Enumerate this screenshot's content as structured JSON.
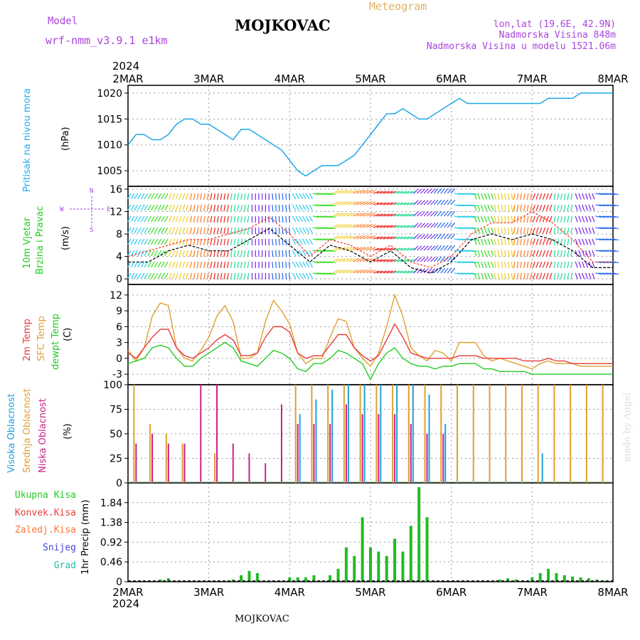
{
  "header": {
    "title": "MOJKOVAC",
    "model_label": "Model",
    "model_name": "wrf-nmm_v3.9.1  e1km",
    "meteogram": "Meteogram",
    "lonlat": "lon,lat (19.6E, 42.9N)",
    "altitude": "Nadmorska Visina 848m",
    "model_altitude": "Nadmorska Visina u modelu 1521.06m",
    "year_top": "2024",
    "year_bottom": "2024",
    "footer": "MOJKOVAC",
    "credit": "made by Angel"
  },
  "colors": {
    "pressure": "#1ea8e6",
    "temp2m": "#e83c3c",
    "sfc": "#e0a030",
    "dew": "#22cc22",
    "high_cloud": "#1fa0dc",
    "mid_cloud": "#e0a030",
    "low_cloud": "#cc1f8a",
    "wind_speed": "#000000",
    "gust": "#ff3322",
    "grid": "#999999",
    "label_blue": "#22aaee",
    "label_green": "#22cc22",
    "label_purple": "#aa44dd"
  },
  "chart_data": [
    {
      "type": "line",
      "name": "pressure",
      "x_ticks": [
        "2MAR",
        "3MAR",
        "4MAR",
        "5MAR",
        "6MAR",
        "7MAR",
        "8MAR"
      ],
      "ylabel_outer": "Pritisak na nivou mora",
      "unit": "(hPa)",
      "ylim": [
        1002,
        1021.5
      ],
      "y_ticks": [
        1005,
        1010,
        1015,
        1020
      ],
      "grid": true,
      "x": [
        0,
        0.1,
        0.2,
        0.3,
        0.4,
        0.5,
        0.6,
        0.7,
        0.8,
        0.9,
        1.0,
        1.1,
        1.2,
        1.3,
        1.4,
        1.5,
        1.6,
        1.7,
        1.8,
        1.9,
        2.0,
        2.1,
        2.2,
        2.3,
        2.4,
        2.5,
        2.6,
        2.7,
        2.8,
        2.9,
        3.0,
        3.1,
        3.2,
        3.3,
        3.4,
        3.5,
        3.6,
        3.7,
        3.8,
        3.9,
        4.0,
        4.1,
        4.2,
        4.3,
        4.4,
        4.5,
        4.6,
        4.7,
        4.8,
        4.9,
        5.0,
        5.1,
        5.2,
        5.3,
        5.4,
        5.5,
        5.6,
        5.7,
        5.8,
        5.9,
        6.0
      ],
      "values": [
        1010,
        1012,
        1012,
        1011,
        1011,
        1012,
        1014,
        1015,
        1015,
        1014,
        1014,
        1013,
        1012,
        1011,
        1013,
        1013,
        1012,
        1011,
        1010,
        1009,
        1007,
        1005,
        1004,
        1005,
        1006,
        1006,
        1006,
        1007,
        1008,
        1010,
        1012,
        1014,
        1016,
        1016,
        1017,
        1016,
        1015,
        1015,
        1016,
        1017,
        1018,
        1019,
        1018,
        1018,
        1018,
        1018,
        1018,
        1018,
        1018,
        1018,
        1018,
        1018,
        1019,
        1019,
        1019,
        1019,
        1020,
        1020,
        1020,
        1020,
        1020
      ]
    },
    {
      "type": "line",
      "name": "wind",
      "x_ticks": [
        "2MAR",
        "3MAR",
        "4MAR",
        "5MAR",
        "6MAR",
        "7MAR",
        "8MAR"
      ],
      "ylabel_outer": [
        "10m Vjetar",
        "Brzina i Pravac"
      ],
      "unit": "(m/s)",
      "compass": [
        "N",
        "W",
        "E",
        "S"
      ],
      "ylim": [
        -1,
        16.5
      ],
      "y_ticks": [
        0,
        4,
        8,
        12,
        16
      ],
      "grid": true,
      "x": [
        0,
        0.25,
        0.5,
        0.75,
        1.0,
        1.25,
        1.5,
        1.75,
        2.0,
        2.25,
        2.5,
        2.75,
        3.0,
        3.25,
        3.5,
        3.75,
        4.0,
        4.25,
        4.5,
        4.75,
        5.0,
        5.25,
        5.5,
        5.75,
        6.0
      ],
      "values": [
        3,
        3,
        5,
        6,
        5,
        5,
        7,
        9,
        6,
        3,
        6,
        5,
        3,
        5,
        2,
        1,
        3,
        7,
        8,
        7,
        8,
        7,
        5,
        2,
        2
      ],
      "gust_values": [
        4,
        5,
        6,
        7,
        7,
        8,
        9,
        11,
        8,
        4,
        7,
        6,
        4,
        6,
        3,
        2,
        4,
        8,
        10,
        10,
        12,
        10,
        7,
        3,
        3
      ],
      "direction_deg": [
        210,
        210,
        200,
        190,
        190,
        190,
        180,
        175,
        150,
        100,
        60,
        60,
        70,
        70,
        45,
        40,
        100,
        160,
        170,
        190,
        200,
        190,
        160,
        100,
        90
      ]
    },
    {
      "type": "line",
      "name": "temperature",
      "x_ticks": [
        "2MAR",
        "3MAR",
        "4MAR",
        "5MAR",
        "6MAR",
        "7MAR",
        "8MAR"
      ],
      "labels": [
        "2m Temp",
        "SFC Temp",
        "dewpt Temp"
      ],
      "unit": "(C)",
      "ylim": [
        -5,
        14
      ],
      "y_ticks": [
        -3,
        0,
        3,
        6,
        9,
        12
      ],
      "grid": true,
      "x": [
        0,
        0.1,
        0.2,
        0.3,
        0.4,
        0.5,
        0.6,
        0.7,
        0.8,
        0.9,
        1.0,
        1.1,
        1.2,
        1.3,
        1.4,
        1.5,
        1.6,
        1.7,
        1.8,
        1.9,
        2.0,
        2.1,
        2.2,
        2.3,
        2.4,
        2.5,
        2.6,
        2.7,
        2.8,
        2.9,
        3.0,
        3.1,
        3.2,
        3.3,
        3.4,
        3.5,
        3.6,
        3.7,
        3.8,
        3.9,
        4.0,
        4.1,
        4.2,
        4.3,
        4.4,
        4.5,
        4.6,
        4.7,
        4.8,
        4.9,
        5.0,
        5.1,
        5.2,
        5.3,
        5.4,
        5.5,
        5.6,
        5.7,
        5.8,
        5.9,
        6.0
      ],
      "series": [
        {
          "name": "2m Temp",
          "values": [
            1,
            0,
            2,
            4,
            5.5,
            5.5,
            2,
            0.5,
            0,
            1,
            2,
            3.5,
            4.5,
            3.5,
            0.5,
            0.5,
            1,
            4,
            6,
            6,
            5,
            1,
            0,
            0.5,
            0.5,
            2.5,
            4.5,
            4.5,
            2,
            0.5,
            -0.5,
            0.5,
            3.5,
            6.5,
            4,
            1,
            0.5,
            0,
            0,
            0,
            0,
            0.5,
            0.5,
            0.5,
            0,
            0,
            0,
            0,
            0,
            -0.5,
            -0.5,
            -0.5,
            0,
            -0.5,
            -0.5,
            -1,
            -1,
            -1,
            -1,
            -1,
            -1
          ]
        },
        {
          "name": "SFC Temp",
          "values": [
            1.5,
            -0.5,
            2,
            8,
            10.5,
            10,
            2,
            0,
            -0.5,
            1.5,
            4,
            8,
            10,
            7,
            0,
            0,
            1,
            7,
            11,
            9,
            6.5,
            1,
            -1,
            0,
            0,
            4,
            7.5,
            7,
            2,
            0,
            -1.5,
            1,
            6,
            12,
            8,
            2,
            0.5,
            -0.5,
            1.5,
            1,
            -0.5,
            3,
            3,
            3,
            0.5,
            -0.5,
            0,
            -0.5,
            -1,
            -1.5,
            -2,
            -1,
            -0.5,
            -1,
            -1,
            -1,
            -1.5,
            -1.5,
            -1.5,
            -1.5,
            -1.5
          ]
        },
        {
          "name": "dewpt Temp",
          "values": [
            -1,
            -0.5,
            0,
            2,
            2.5,
            2,
            0,
            -1.5,
            -1.5,
            0,
            1,
            2,
            3,
            2,
            -0.5,
            -1,
            -1.5,
            0,
            1.5,
            1,
            0,
            -2,
            -2.5,
            -1,
            -1,
            0,
            1.5,
            1,
            0,
            -1,
            -4,
            -1,
            1,
            2,
            0,
            -1,
            -1.5,
            -1.5,
            -2,
            -1.5,
            -1.5,
            -1,
            -1,
            -1,
            -2,
            -2,
            -2.5,
            -2.5,
            -2.5,
            -2.5,
            -3,
            -3,
            -3,
            -3,
            -3,
            -3,
            -3,
            -3,
            -3,
            -3,
            -3
          ]
        }
      ]
    },
    {
      "type": "bar",
      "name": "clouds",
      "x_ticks": [
        "2MAR",
        "3MAR",
        "4MAR",
        "5MAR",
        "6MAR",
        "7MAR",
        "8MAR"
      ],
      "labels": [
        "Visoka Oblacnost",
        "Srednja Oblacnost",
        "Niska Oblacnost"
      ],
      "unit": "(%)",
      "ylim": [
        0,
        100
      ],
      "y_ticks": [
        0,
        25,
        50,
        75,
        100
      ],
      "grid": true,
      "x": [
        0.1,
        0.3,
        0.5,
        0.7,
        0.9,
        1.1,
        1.3,
        1.5,
        1.7,
        1.9,
        2.1,
        2.3,
        2.5,
        2.7,
        2.9,
        3.1,
        3.3,
        3.5,
        3.7,
        3.9,
        4.1,
        4.3,
        4.5,
        4.7,
        4.9,
        5.1,
        5.3,
        5.5,
        5.7,
        5.9
      ],
      "series": [
        {
          "name": "Visoka Oblacnost",
          "values": [
            0,
            0,
            0,
            0,
            0,
            0,
            0,
            0,
            0,
            0,
            70,
            85,
            95,
            100,
            100,
            100,
            100,
            100,
            90,
            60,
            0,
            0,
            0,
            0,
            0,
            30,
            0,
            0,
            0,
            0
          ]
        },
        {
          "name": "Srednja Oblacnost",
          "values": [
            100,
            60,
            50,
            40,
            0,
            30,
            0,
            0,
            0,
            0,
            100,
            100,
            100,
            100,
            100,
            100,
            100,
            100,
            100,
            100,
            100,
            100,
            100,
            100,
            100,
            100,
            100,
            100,
            100,
            100
          ]
        },
        {
          "name": "Niska Oblacnost",
          "values": [
            40,
            50,
            40,
            40,
            100,
            100,
            40,
            30,
            20,
            80,
            60,
            60,
            60,
            80,
            70,
            70,
            70,
            60,
            50,
            50,
            0,
            0,
            0,
            0,
            0,
            0,
            0,
            0,
            0,
            0
          ]
        }
      ]
    },
    {
      "type": "bar",
      "name": "precip",
      "x_ticks": [
        "2MAR",
        "3MAR",
        "4MAR",
        "5MAR",
        "6MAR",
        "7MAR",
        "8MAR"
      ],
      "labels": [
        "Ukupna Kisa",
        "Konvek.Kisa",
        "Zaledj.Kisa",
        "Snijeg",
        "Grad"
      ],
      "unit": "1hr Precip (mm)",
      "ylim": [
        0,
        2.3
      ],
      "y_ticks": [
        0,
        0.46,
        0.92,
        1.38,
        1.84
      ],
      "grid": true,
      "x": [
        0.4,
        0.5,
        1.3,
        1.4,
        1.5,
        1.6,
        2.0,
        2.1,
        2.2,
        2.3,
        2.5,
        2.6,
        2.7,
        2.8,
        2.9,
        3.0,
        3.1,
        3.2,
        3.3,
        3.4,
        3.5,
        3.6,
        3.7,
        4.6,
        4.7,
        4.8,
        5.0,
        5.1,
        5.2,
        5.3,
        5.4,
        5.5,
        5.6,
        5.7,
        5.8
      ],
      "values": [
        0.05,
        0.08,
        0.05,
        0.15,
        0.25,
        0.2,
        0.1,
        0.1,
        0.1,
        0.15,
        0.15,
        0.3,
        0.8,
        0.6,
        1.5,
        0.8,
        0.7,
        0.6,
        1.0,
        0.7,
        1.3,
        2.2,
        1.5,
        0.05,
        0.08,
        0.05,
        0.1,
        0.2,
        0.3,
        0.2,
        0.15,
        0.12,
        0.1,
        0.08,
        0.05
      ]
    }
  ]
}
